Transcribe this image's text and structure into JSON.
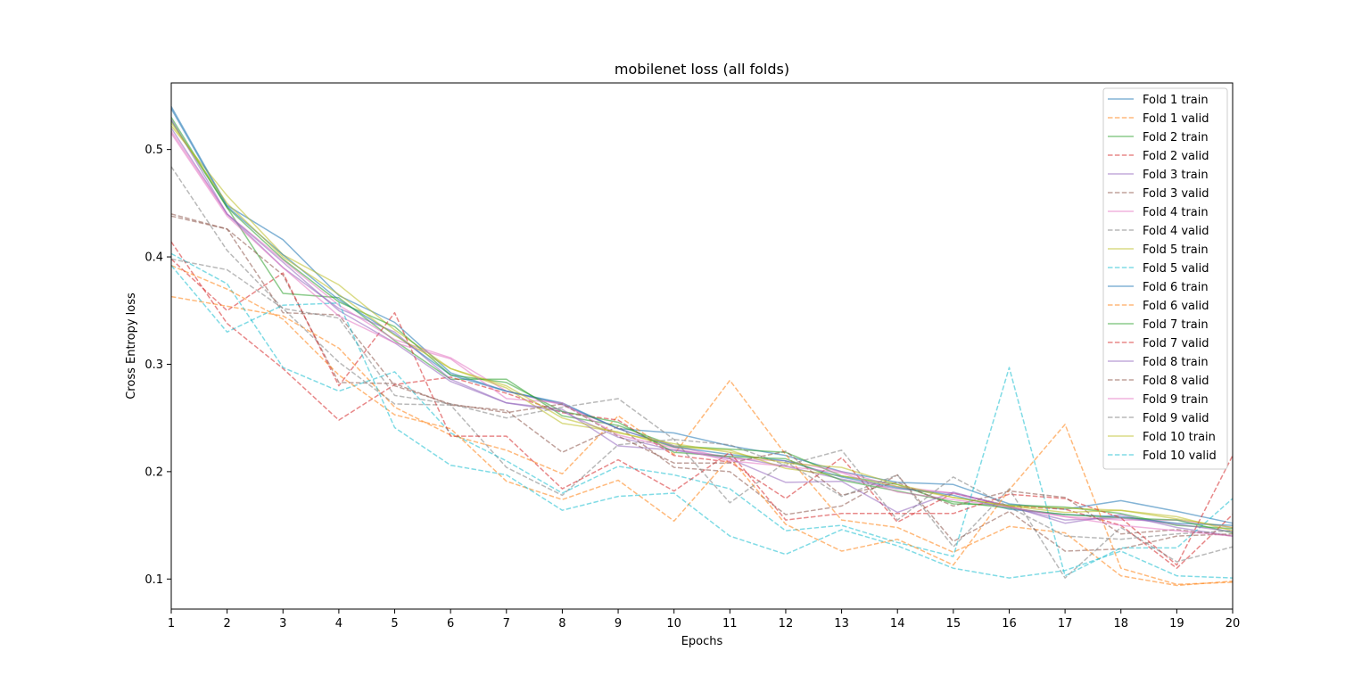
{
  "chart_data": {
    "type": "line",
    "title": "mobilenet loss (all folds)",
    "xlabel": "Epochs",
    "ylabel": "Cross Entropy loss",
    "xlim": [
      1,
      20
    ],
    "ylim": [
      0.072,
      0.562
    ],
    "xticks": [
      1,
      2,
      3,
      4,
      5,
      6,
      7,
      8,
      9,
      10,
      11,
      12,
      13,
      14,
      15,
      16,
      17,
      18,
      19,
      20
    ],
    "yticks": [
      0.1,
      0.2,
      0.3,
      0.4,
      0.5
    ],
    "ytick_labels": [
      "0.1",
      "0.2",
      "0.3",
      "0.4",
      "0.5"
    ],
    "grid": false,
    "legend_position": "top-right",
    "x": [
      1,
      2,
      3,
      4,
      5,
      6,
      7,
      8,
      9,
      10,
      11,
      12,
      13,
      14,
      15,
      16,
      17,
      18,
      19,
      20
    ],
    "series": [
      {
        "name": "Fold 1 train",
        "color": "#1f77b4",
        "dash": "solid",
        "values": [
          0.54,
          0.448,
          0.416,
          0.364,
          0.339,
          0.292,
          0.275,
          0.264,
          0.24,
          0.236,
          0.224,
          0.215,
          0.2,
          0.19,
          0.188,
          0.17,
          0.165,
          0.173,
          0.163,
          0.152
        ]
      },
      {
        "name": "Fold 1 valid",
        "color": "#ff7f0e",
        "dash": "dashed",
        "values": [
          0.363,
          0.354,
          0.345,
          0.315,
          0.26,
          0.234,
          0.22,
          0.198,
          0.252,
          0.216,
          0.285,
          0.216,
          0.155,
          0.148,
          0.125,
          0.149,
          0.143,
          0.103,
          0.094,
          0.098
        ]
      },
      {
        "name": "Fold 2 train",
        "color": "#2ca02c",
        "dash": "solid",
        "values": [
          0.53,
          0.446,
          0.366,
          0.362,
          0.322,
          0.286,
          0.286,
          0.252,
          0.243,
          0.224,
          0.221,
          0.218,
          0.196,
          0.188,
          0.17,
          0.169,
          0.167,
          0.161,
          0.15,
          0.147
        ]
      },
      {
        "name": "Fold 2 valid",
        "color": "#d62728",
        "dash": "dashed",
        "values": [
          0.414,
          0.338,
          0.296,
          0.248,
          0.281,
          0.288,
          0.273,
          0.255,
          0.248,
          0.215,
          0.209,
          0.175,
          0.213,
          0.153,
          0.18,
          0.168,
          0.165,
          0.15,
          0.11,
          0.16
        ]
      },
      {
        "name": "Fold 3 train",
        "color": "#9467bd",
        "dash": "solid",
        "values": [
          0.52,
          0.44,
          0.39,
          0.352,
          0.33,
          0.286,
          0.264,
          0.256,
          0.232,
          0.22,
          0.214,
          0.205,
          0.193,
          0.184,
          0.18,
          0.168,
          0.152,
          0.16,
          0.148,
          0.14
        ]
      },
      {
        "name": "Fold 3 valid",
        "color": "#8c564b",
        "dash": "dashed",
        "values": [
          0.438,
          0.426,
          0.383,
          0.283,
          0.282,
          0.262,
          0.257,
          0.218,
          0.242,
          0.204,
          0.2,
          0.16,
          0.168,
          0.197,
          0.135,
          0.163,
          0.126,
          0.128,
          0.14,
          0.142
        ]
      },
      {
        "name": "Fold 4 train",
        "color": "#e377c2",
        "dash": "solid",
        "values": [
          0.517,
          0.44,
          0.397,
          0.355,
          0.323,
          0.306,
          0.275,
          0.262,
          0.24,
          0.224,
          0.212,
          0.21,
          0.2,
          0.186,
          0.18,
          0.167,
          0.158,
          0.155,
          0.155,
          0.148
        ]
      },
      {
        "name": "Fold 4 valid",
        "color": "#7f7f7f",
        "dash": "dashed",
        "values": [
          0.484,
          0.406,
          0.352,
          0.302,
          0.263,
          0.262,
          0.204,
          0.178,
          0.225,
          0.23,
          0.225,
          0.206,
          0.22,
          0.155,
          0.195,
          0.167,
          0.14,
          0.137,
          0.142,
          0.145
        ]
      },
      {
        "name": "Fold 5 train",
        "color": "#bcbd22",
        "dash": "solid",
        "values": [
          0.522,
          0.457,
          0.402,
          0.374,
          0.332,
          0.296,
          0.278,
          0.245,
          0.237,
          0.223,
          0.22,
          0.203,
          0.196,
          0.186,
          0.176,
          0.168,
          0.166,
          0.164,
          0.156,
          0.148
        ]
      },
      {
        "name": "Fold 5 valid",
        "color": "#17becf",
        "dash": "dashed",
        "values": [
          0.403,
          0.375,
          0.297,
          0.275,
          0.293,
          0.236,
          0.21,
          0.18,
          0.205,
          0.197,
          0.184,
          0.145,
          0.15,
          0.134,
          0.121,
          0.297,
          0.103,
          0.129,
          0.129,
          0.175
        ]
      },
      {
        "name": "Fold 6 train",
        "color": "#1f77b4",
        "dash": "solid",
        "values": [
          0.538,
          0.447,
          0.402,
          0.36,
          0.328,
          0.29,
          0.275,
          0.263,
          0.24,
          0.223,
          0.216,
          0.21,
          0.195,
          0.185,
          0.178,
          0.165,
          0.16,
          0.158,
          0.152,
          0.15
        ]
      },
      {
        "name": "Fold 6 valid",
        "color": "#ff7f0e",
        "dash": "dashed",
        "values": [
          0.392,
          0.37,
          0.342,
          0.29,
          0.253,
          0.24,
          0.191,
          0.174,
          0.192,
          0.154,
          0.213,
          0.151,
          0.126,
          0.137,
          0.113,
          0.183,
          0.244,
          0.11,
          0.095,
          0.097
        ]
      },
      {
        "name": "Fold 7 train",
        "color": "#2ca02c",
        "dash": "solid",
        "values": [
          0.527,
          0.446,
          0.398,
          0.358,
          0.335,
          0.29,
          0.283,
          0.256,
          0.246,
          0.218,
          0.214,
          0.212,
          0.192,
          0.182,
          0.172,
          0.166,
          0.16,
          0.157,
          0.155,
          0.143
        ]
      },
      {
        "name": "Fold 7 valid",
        "color": "#d62728",
        "dash": "dashed",
        "values": [
          0.398,
          0.35,
          0.385,
          0.28,
          0.348,
          0.233,
          0.233,
          0.184,
          0.211,
          0.182,
          0.218,
          0.155,
          0.161,
          0.161,
          0.161,
          0.179,
          0.175,
          0.157,
          0.113,
          0.215
        ]
      },
      {
        "name": "Fold 8 train",
        "color": "#9467bd",
        "dash": "solid",
        "values": [
          0.528,
          0.44,
          0.395,
          0.35,
          0.32,
          0.284,
          0.264,
          0.258,
          0.224,
          0.22,
          0.212,
          0.19,
          0.191,
          0.162,
          0.181,
          0.167,
          0.155,
          0.157,
          0.151,
          0.144
        ]
      },
      {
        "name": "Fold 8 valid",
        "color": "#8c564b",
        "dash": "dashed",
        "values": [
          0.44,
          0.426,
          0.348,
          0.346,
          0.28,
          0.263,
          0.255,
          0.263,
          0.233,
          0.208,
          0.208,
          0.219,
          0.178,
          0.19,
          0.168,
          0.182,
          0.176,
          0.142,
          0.146,
          0.14
        ]
      },
      {
        "name": "Fold 9 train",
        "color": "#e377c2",
        "dash": "solid",
        "values": [
          0.515,
          0.438,
          0.39,
          0.345,
          0.32,
          0.305,
          0.268,
          0.264,
          0.234,
          0.222,
          0.21,
          0.205,
          0.199,
          0.181,
          0.174,
          0.167,
          0.158,
          0.15,
          0.145,
          0.14
        ]
      },
      {
        "name": "Fold 9 valid",
        "color": "#7f7f7f",
        "dash": "dashed",
        "values": [
          0.398,
          0.388,
          0.352,
          0.343,
          0.271,
          0.263,
          0.25,
          0.26,
          0.268,
          0.23,
          0.171,
          0.209,
          0.177,
          0.197,
          0.13,
          0.184,
          0.101,
          0.148,
          0.116,
          0.13
        ]
      },
      {
        "name": "Fold 10 train",
        "color": "#bcbd22",
        "dash": "solid",
        "values": [
          0.525,
          0.45,
          0.4,
          0.365,
          0.327,
          0.296,
          0.28,
          0.25,
          0.236,
          0.226,
          0.218,
          0.208,
          0.204,
          0.188,
          0.176,
          0.168,
          0.162,
          0.164,
          0.158,
          0.145
        ]
      },
      {
        "name": "Fold 10 valid",
        "color": "#17becf",
        "dash": "dashed",
        "values": [
          0.392,
          0.33,
          0.355,
          0.357,
          0.241,
          0.206,
          0.197,
          0.164,
          0.177,
          0.18,
          0.14,
          0.123,
          0.146,
          0.131,
          0.11,
          0.101,
          0.108,
          0.126,
          0.103,
          0.101
        ]
      }
    ]
  }
}
